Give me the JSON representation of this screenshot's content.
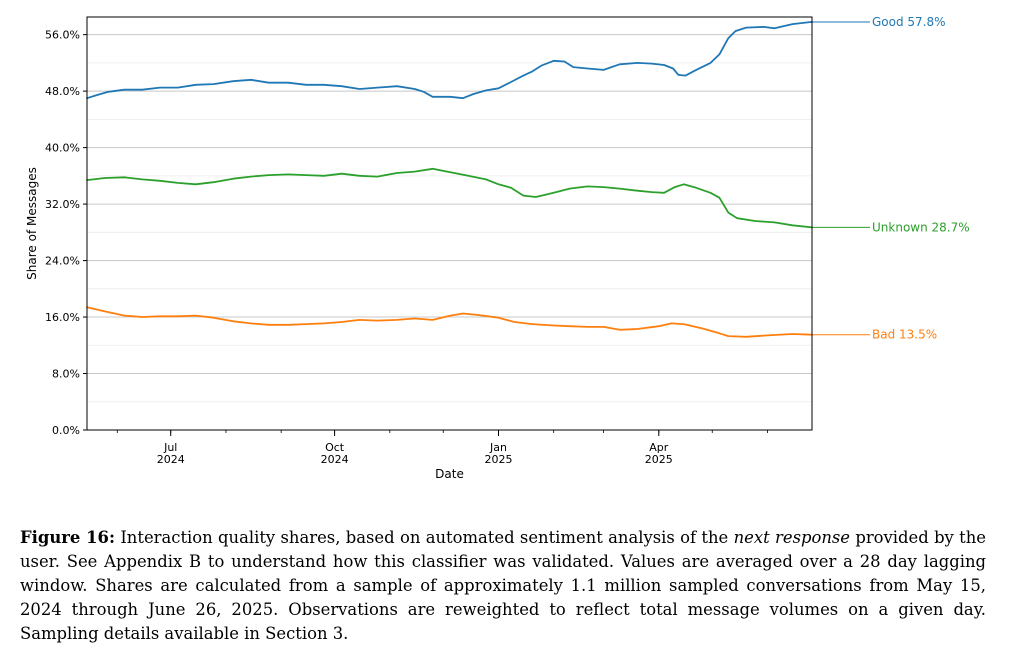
{
  "chart_data": {
    "type": "line",
    "title": "",
    "xlabel": "Date",
    "ylabel": "Share of Messages",
    "xlim": [
      "2024-05-15",
      "2025-06-26"
    ],
    "ylim": [
      0,
      58.5
    ],
    "y_ticks": [
      0,
      8,
      16,
      24,
      32,
      40,
      48,
      56
    ],
    "y_tick_labels": [
      "0.0%",
      "8.0%",
      "16.0%",
      "24.0%",
      "32.0%",
      "40.0%",
      "48.0%",
      "56.0%"
    ],
    "x_ticks": [
      {
        "date": "2024-07-01",
        "label1": "Jul",
        "label2": "2024"
      },
      {
        "date": "2024-10-01",
        "label1": "Oct",
        "label2": "2024"
      },
      {
        "date": "2025-01-01",
        "label1": "Jan",
        "label2": "2025"
      },
      {
        "date": "2025-04-01",
        "label1": "Apr",
        "label2": "2025"
      }
    ],
    "grid": "horizontal",
    "legend": "none",
    "series": [
      {
        "name": "Good",
        "end_label": "Good  57.8%",
        "color": "#1f77b4",
        "points": [
          [
            "2024-05-15",
            47.0
          ],
          [
            "2024-05-20",
            47.4
          ],
          [
            "2024-05-27",
            47.9
          ],
          [
            "2024-06-05",
            48.2
          ],
          [
            "2024-06-15",
            48.2
          ],
          [
            "2024-06-25",
            48.5
          ],
          [
            "2024-07-05",
            48.5
          ],
          [
            "2024-07-15",
            48.9
          ],
          [
            "2024-07-25",
            49.0
          ],
          [
            "2024-08-05",
            49.4
          ],
          [
            "2024-08-15",
            49.6
          ],
          [
            "2024-08-25",
            49.2
          ],
          [
            "2024-09-05",
            49.2
          ],
          [
            "2024-09-15",
            48.9
          ],
          [
            "2024-09-25",
            48.9
          ],
          [
            "2024-10-05",
            48.7
          ],
          [
            "2024-10-15",
            48.3
          ],
          [
            "2024-10-25",
            48.5
          ],
          [
            "2024-11-05",
            48.7
          ],
          [
            "2024-11-15",
            48.3
          ],
          [
            "2024-11-20",
            47.9
          ],
          [
            "2024-11-25",
            47.2
          ],
          [
            "2024-12-05",
            47.2
          ],
          [
            "2024-12-12",
            47.0
          ],
          [
            "2024-12-18",
            47.6
          ],
          [
            "2024-12-25",
            48.1
          ],
          [
            "2025-01-01",
            48.4
          ],
          [
            "2025-01-08",
            49.3
          ],
          [
            "2025-01-15",
            50.2
          ],
          [
            "2025-01-20",
            50.8
          ],
          [
            "2025-01-25",
            51.6
          ],
          [
            "2025-02-01",
            52.3
          ],
          [
            "2025-02-07",
            52.2
          ],
          [
            "2025-02-12",
            51.4
          ],
          [
            "2025-02-20",
            51.2
          ],
          [
            "2025-03-01",
            51.0
          ],
          [
            "2025-03-10",
            51.8
          ],
          [
            "2025-03-20",
            52.0
          ],
          [
            "2025-03-28",
            51.9
          ],
          [
            "2025-04-04",
            51.7
          ],
          [
            "2025-04-09",
            51.2
          ],
          [
            "2025-04-12",
            50.3
          ],
          [
            "2025-04-16",
            50.2
          ],
          [
            "2025-04-22",
            51.0
          ],
          [
            "2025-04-30",
            52.0
          ],
          [
            "2025-05-05",
            53.2
          ],
          [
            "2025-05-10",
            55.5
          ],
          [
            "2025-05-14",
            56.5
          ],
          [
            "2025-05-20",
            57.0
          ],
          [
            "2025-05-30",
            57.1
          ],
          [
            "2025-06-05",
            56.9
          ],
          [
            "2025-06-15",
            57.5
          ],
          [
            "2025-06-26",
            57.8
          ]
        ]
      },
      {
        "name": "Unknown",
        "end_label": "Unknown  28.7%",
        "color": "#2ca02c",
        "points": [
          [
            "2024-05-15",
            35.4
          ],
          [
            "2024-05-25",
            35.7
          ],
          [
            "2024-06-05",
            35.8
          ],
          [
            "2024-06-15",
            35.5
          ],
          [
            "2024-06-25",
            35.3
          ],
          [
            "2024-07-05",
            35.0
          ],
          [
            "2024-07-15",
            34.8
          ],
          [
            "2024-07-25",
            35.1
          ],
          [
            "2024-08-05",
            35.6
          ],
          [
            "2024-08-15",
            35.9
          ],
          [
            "2024-08-25",
            36.1
          ],
          [
            "2024-09-05",
            36.2
          ],
          [
            "2024-09-15",
            36.1
          ],
          [
            "2024-09-25",
            36.0
          ],
          [
            "2024-10-05",
            36.3
          ],
          [
            "2024-10-15",
            36.0
          ],
          [
            "2024-10-25",
            35.9
          ],
          [
            "2024-11-05",
            36.4
          ],
          [
            "2024-11-15",
            36.6
          ],
          [
            "2024-11-25",
            37.0
          ],
          [
            "2024-12-05",
            36.5
          ],
          [
            "2024-12-15",
            36.0
          ],
          [
            "2024-12-25",
            35.5
          ],
          [
            "2025-01-01",
            34.8
          ],
          [
            "2025-01-08",
            34.3
          ],
          [
            "2025-01-15",
            33.2
          ],
          [
            "2025-01-22",
            33.0
          ],
          [
            "2025-02-01",
            33.6
          ],
          [
            "2025-02-10",
            34.2
          ],
          [
            "2025-02-20",
            34.5
          ],
          [
            "2025-03-01",
            34.4
          ],
          [
            "2025-03-10",
            34.2
          ],
          [
            "2025-03-20",
            33.9
          ],
          [
            "2025-03-28",
            33.7
          ],
          [
            "2025-04-04",
            33.6
          ],
          [
            "2025-04-10",
            34.4
          ],
          [
            "2025-04-15",
            34.8
          ],
          [
            "2025-04-22",
            34.3
          ],
          [
            "2025-04-30",
            33.6
          ],
          [
            "2025-05-05",
            32.9
          ],
          [
            "2025-05-10",
            30.8
          ],
          [
            "2025-05-15",
            30.0
          ],
          [
            "2025-05-25",
            29.6
          ],
          [
            "2025-06-05",
            29.4
          ],
          [
            "2025-06-15",
            29.0
          ],
          [
            "2025-06-26",
            28.7
          ]
        ]
      },
      {
        "name": "Bad",
        "end_label": "Bad  13.5%",
        "color": "#ff7f0e",
        "points": [
          [
            "2024-05-15",
            17.4
          ],
          [
            "2024-05-25",
            16.8
          ],
          [
            "2024-06-05",
            16.2
          ],
          [
            "2024-06-15",
            16.0
          ],
          [
            "2024-06-25",
            16.1
          ],
          [
            "2024-07-05",
            16.1
          ],
          [
            "2024-07-15",
            16.2
          ],
          [
            "2024-07-25",
            15.9
          ],
          [
            "2024-08-05",
            15.4
          ],
          [
            "2024-08-15",
            15.1
          ],
          [
            "2024-08-25",
            14.9
          ],
          [
            "2024-09-05",
            14.9
          ],
          [
            "2024-09-15",
            15.0
          ],
          [
            "2024-09-25",
            15.1
          ],
          [
            "2024-10-05",
            15.3
          ],
          [
            "2024-10-15",
            15.6
          ],
          [
            "2024-10-25",
            15.5
          ],
          [
            "2024-11-05",
            15.6
          ],
          [
            "2024-11-15",
            15.8
          ],
          [
            "2024-11-25",
            15.6
          ],
          [
            "2024-12-05",
            16.2
          ],
          [
            "2024-12-12",
            16.5
          ],
          [
            "2024-12-20",
            16.3
          ],
          [
            "2025-01-01",
            15.9
          ],
          [
            "2025-01-10",
            15.3
          ],
          [
            "2025-01-20",
            15.0
          ],
          [
            "2025-02-01",
            14.8
          ],
          [
            "2025-02-10",
            14.7
          ],
          [
            "2025-02-20",
            14.6
          ],
          [
            "2025-03-01",
            14.6
          ],
          [
            "2025-03-10",
            14.2
          ],
          [
            "2025-03-20",
            14.3
          ],
          [
            "2025-04-01",
            14.7
          ],
          [
            "2025-04-08",
            15.1
          ],
          [
            "2025-04-15",
            15.0
          ],
          [
            "2025-04-25",
            14.4
          ],
          [
            "2025-05-05",
            13.7
          ],
          [
            "2025-05-10",
            13.3
          ],
          [
            "2025-05-20",
            13.2
          ],
          [
            "2025-06-01",
            13.4
          ],
          [
            "2025-06-15",
            13.6
          ],
          [
            "2025-06-26",
            13.5
          ]
        ]
      }
    ]
  },
  "caption": {
    "label": "Figure 16:",
    "text_before": " Interaction quality shares, based on automated sentiment analysis of the ",
    "emphasis": "next response",
    "text_after": " provided by the user. See Appendix B to understand how this classifier was validated. Values are averaged over a 28 day lagging window. Shares are calculated from a sample of approximately 1.1 million sampled conversations from May 15, 2024 through June 26, 2025. Observations are reweighted to reflect total message volumes on a given day. Sampling details available in Section 3."
  }
}
